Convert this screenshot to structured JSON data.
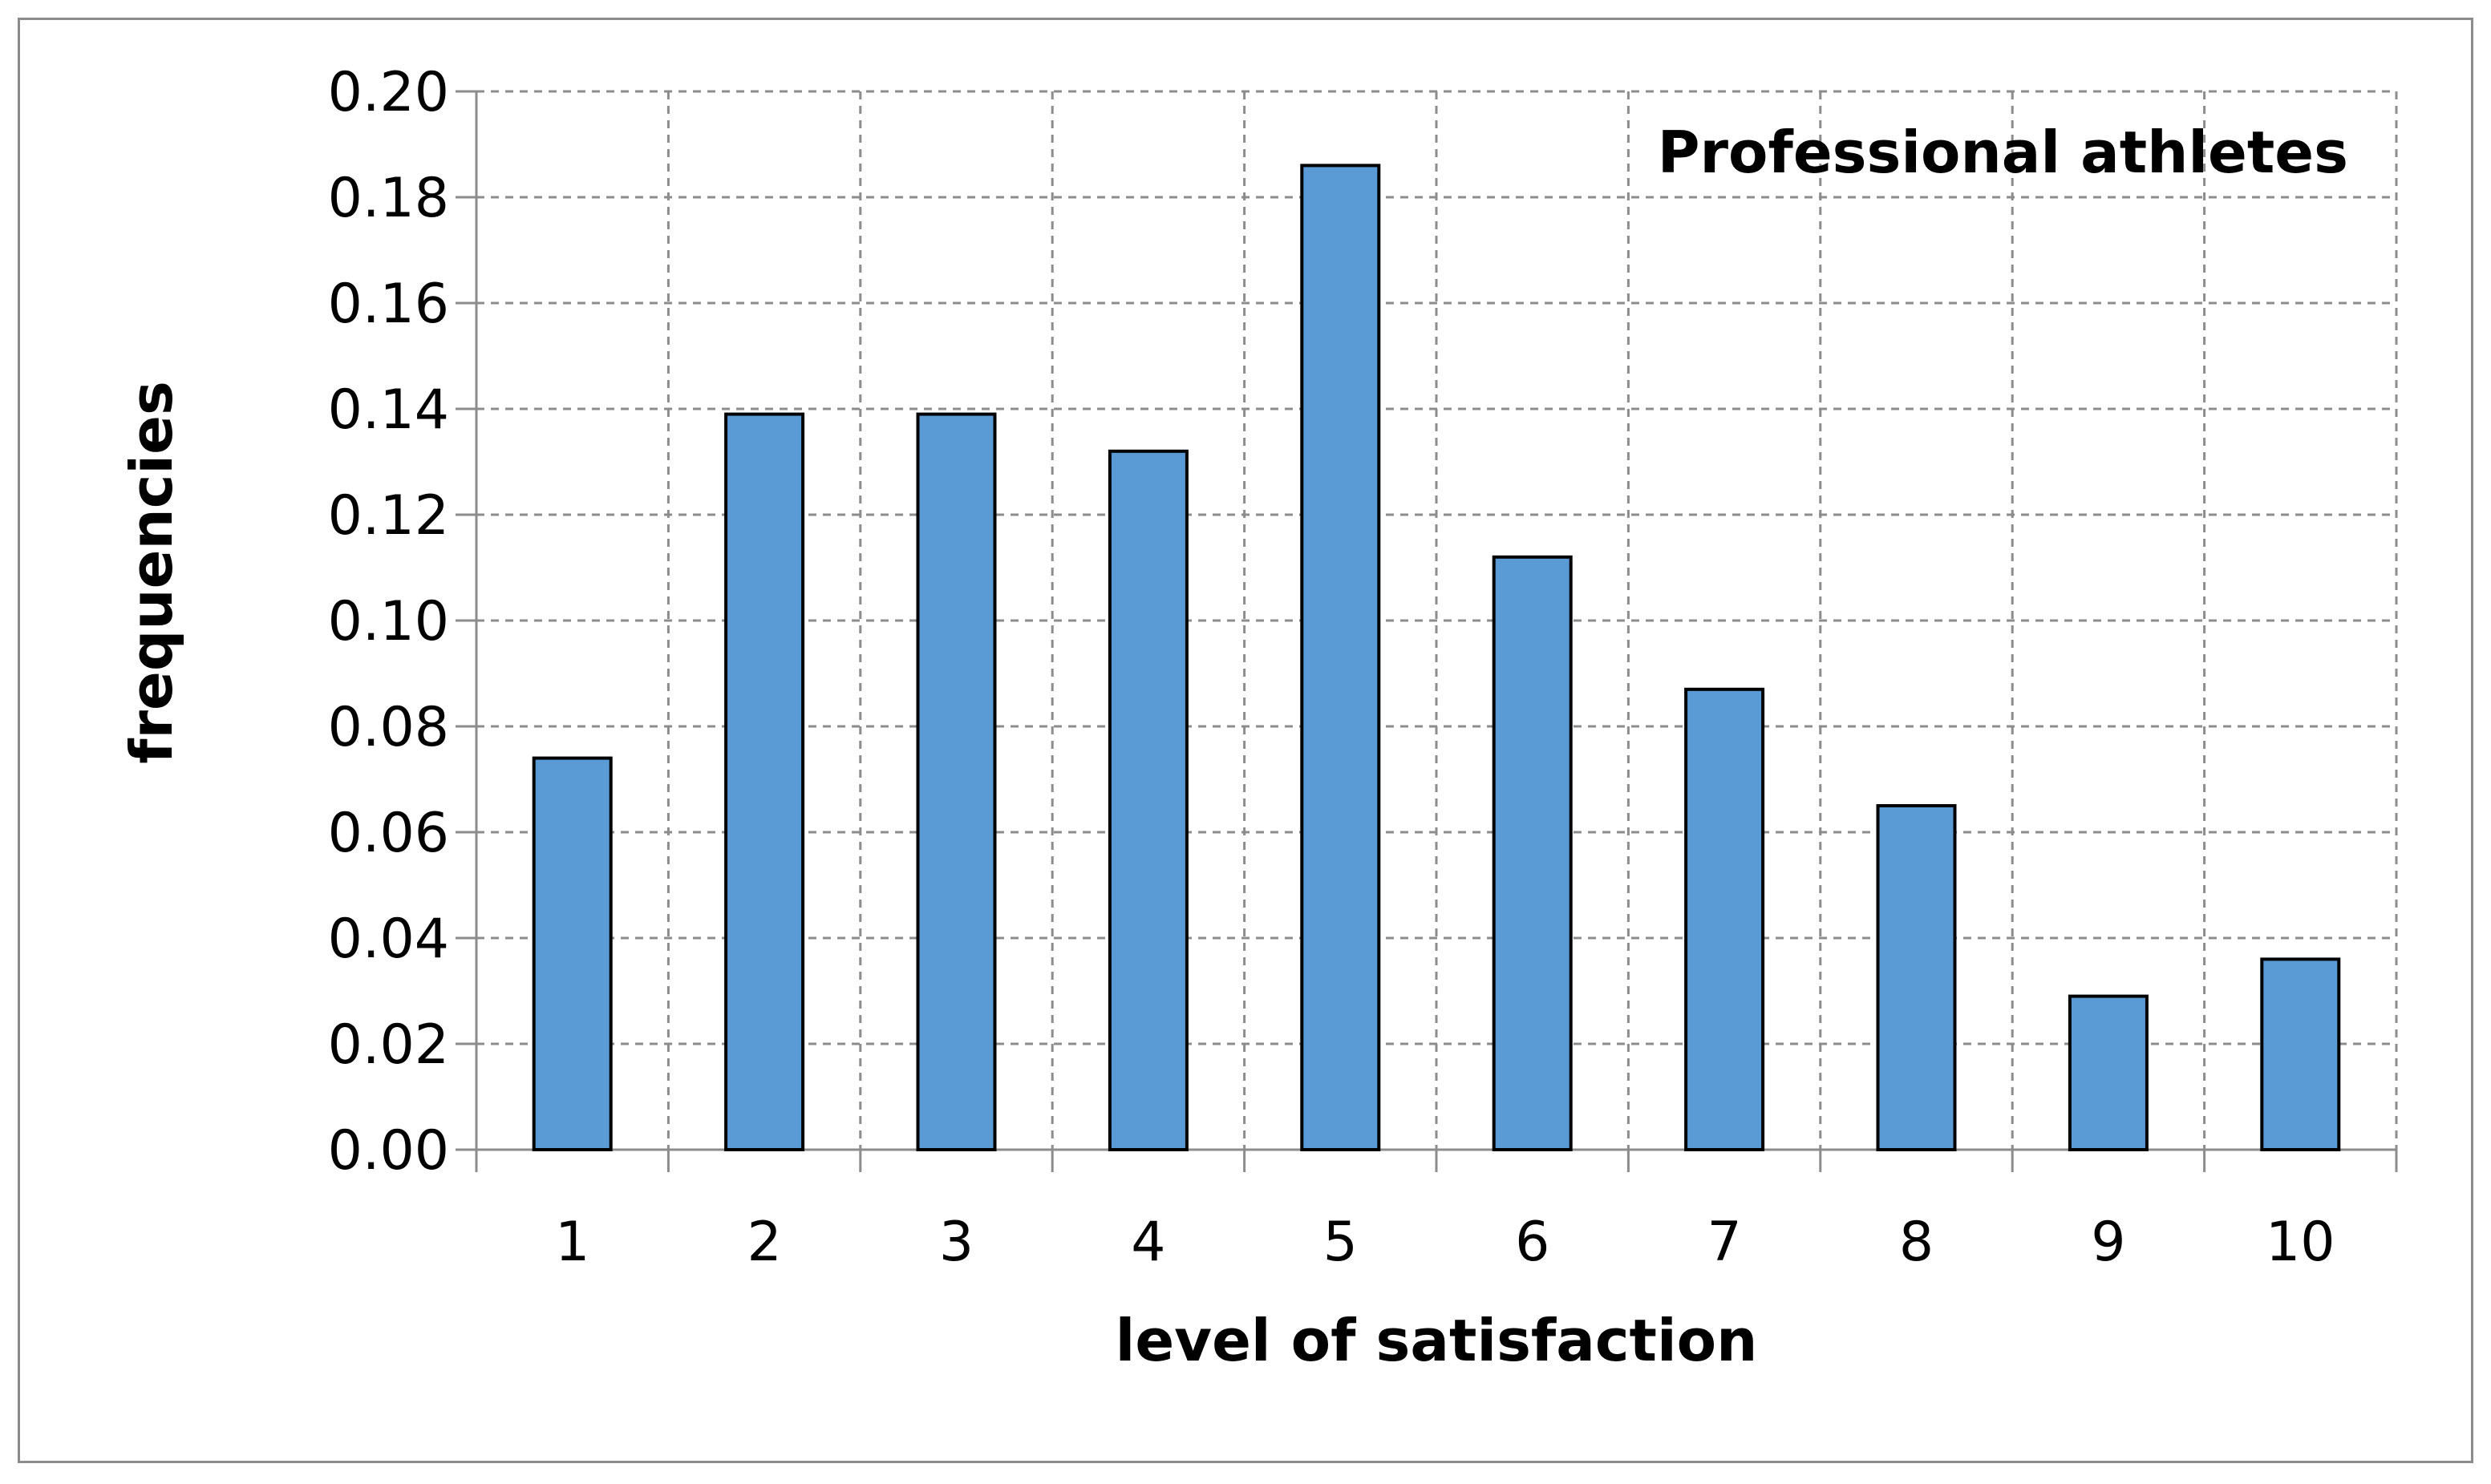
{
  "chart_data": {
    "type": "bar",
    "title": "",
    "annotation": "Professional athletes",
    "xlabel": "level of satisfaction",
    "ylabel": "frequencies",
    "categories": [
      "1",
      "2",
      "3",
      "4",
      "5",
      "6",
      "7",
      "8",
      "9",
      "10"
    ],
    "values": [
      0.074,
      0.139,
      0.139,
      0.132,
      0.186,
      0.112,
      0.087,
      0.065,
      0.029,
      0.036
    ],
    "ylim": [
      0,
      0.2
    ],
    "yticks": [
      "0.00",
      "0.02",
      "0.04",
      "0.06",
      "0.08",
      "0.10",
      "0.12",
      "0.14",
      "0.16",
      "0.18",
      "0.20"
    ],
    "grid": true,
    "grid_style": "dashed",
    "legend": "none",
    "bar_color": "#5b9bd5",
    "bar_edge_color": "#000000",
    "grid_color": "#8c8c8c",
    "axis_color": "#8c8c8c"
  }
}
